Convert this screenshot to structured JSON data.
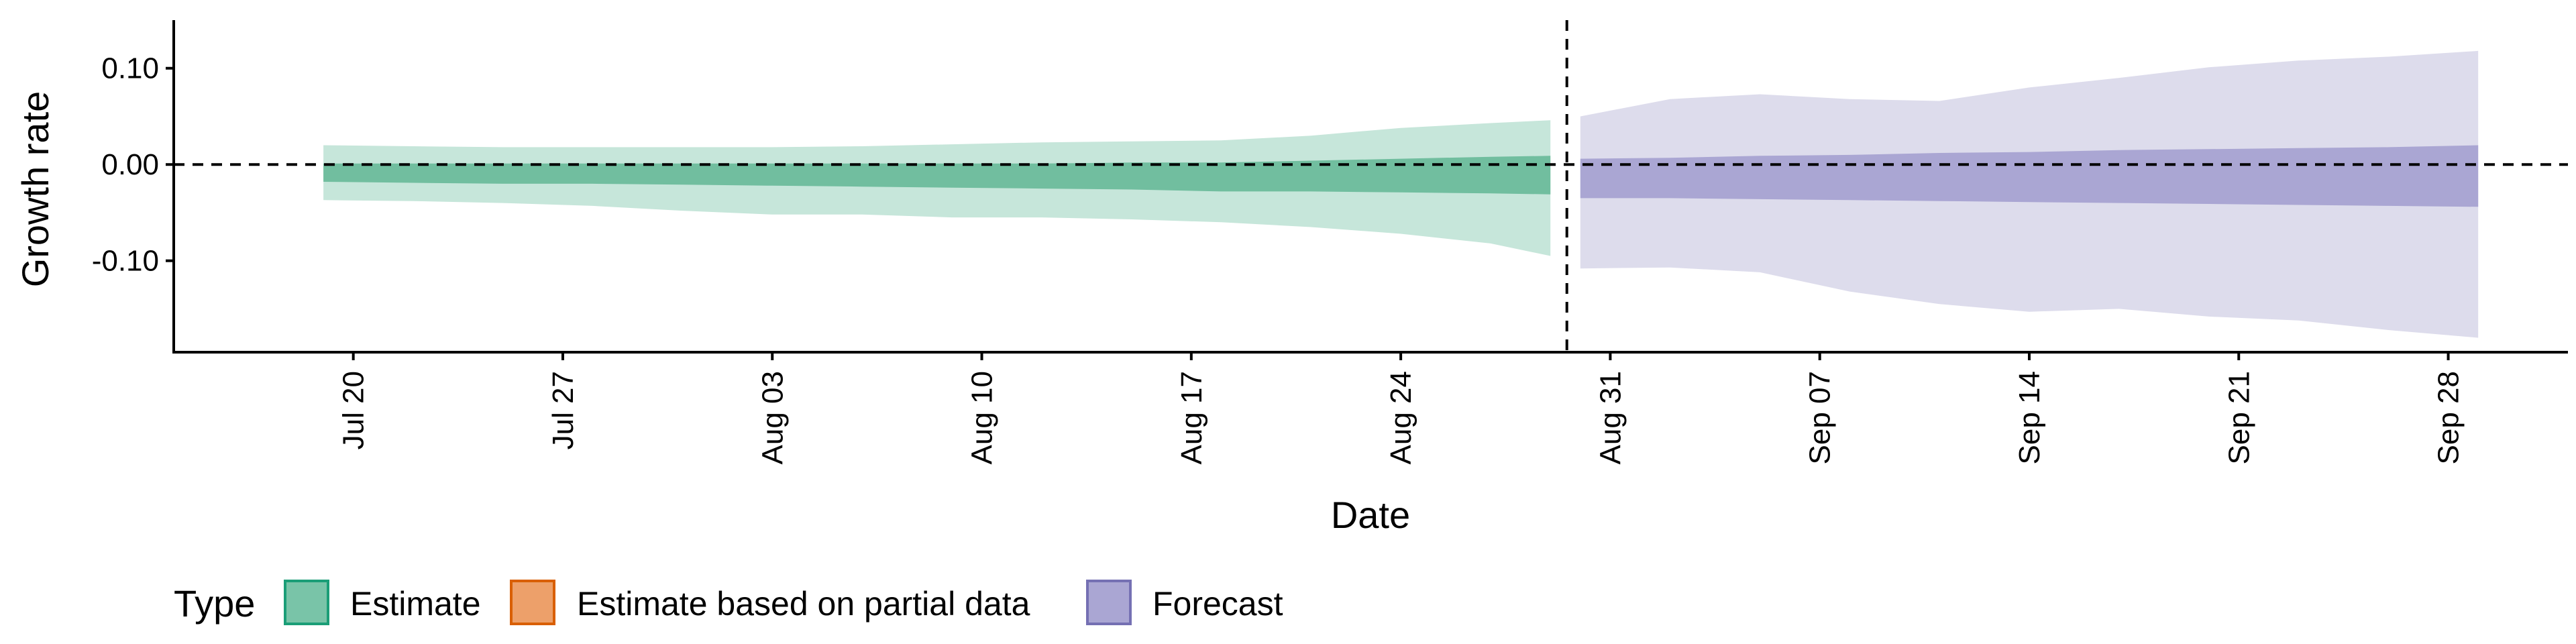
{
  "chart_data": {
    "type": "area",
    "title": "",
    "xlabel": "Date",
    "ylabel": "Growth rate",
    "x_ticks": [
      "Jul 20",
      "Jul 27",
      "Aug 03",
      "Aug 10",
      "Aug 17",
      "Aug 24",
      "Aug 31",
      "Sep 07",
      "Sep 14",
      "Sep 21",
      "Sep 28"
    ],
    "y_ticks": [
      "0.10",
      "0.00",
      "-0.10"
    ],
    "ylim": [
      -0.195,
      0.15
    ],
    "xlim": [
      "2020-07-14",
      "2020-10-02"
    ],
    "reference_lines": {
      "horizontal_y": 0.0,
      "vertical_date": "2020-08-30"
    },
    "legend": {
      "title": "Type",
      "position": "bottom",
      "items": [
        {
          "label": "Estimate",
          "fill": "#79c4a8",
          "border": "#1b9e77"
        },
        {
          "label": "Estimate based on partial data",
          "fill": "#eda06a",
          "border": "#d95f02"
        },
        {
          "label": "Forecast",
          "fill": "#aaa6d3",
          "border": "#7570b3"
        }
      ]
    },
    "series": [
      {
        "name": "Estimate",
        "color_outer": "#c6e6da",
        "color_inner": "#71be9f",
        "dates": [
          "2020-07-19",
          "2020-07-22",
          "2020-07-25",
          "2020-07-28",
          "2020-07-31",
          "2020-08-03",
          "2020-08-06",
          "2020-08-09",
          "2020-08-12",
          "2020-08-15",
          "2020-08-18",
          "2020-08-21",
          "2020-08-24",
          "2020-08-27",
          "2020-08-29"
        ],
        "lower_90": [
          -0.037,
          -0.038,
          -0.04,
          -0.043,
          -0.048,
          -0.052,
          -0.052,
          -0.055,
          -0.055,
          -0.057,
          -0.06,
          -0.065,
          -0.072,
          -0.082,
          -0.095
        ],
        "upper_90": [
          0.02,
          0.019,
          0.018,
          0.018,
          0.018,
          0.018,
          0.019,
          0.021,
          0.023,
          0.024,
          0.025,
          0.03,
          0.038,
          0.043,
          0.046
        ],
        "lower_50": [
          -0.018,
          -0.019,
          -0.02,
          -0.02,
          -0.021,
          -0.022,
          -0.023,
          -0.024,
          -0.025,
          -0.026,
          -0.028,
          -0.028,
          -0.029,
          -0.03,
          -0.031
        ],
        "upper_50": [
          0.001,
          0.001,
          0.001,
          0.001,
          0.001,
          0.001,
          0.001,
          0.001,
          0.001,
          0.002,
          0.002,
          0.004,
          0.006,
          0.008,
          0.009
        ]
      },
      {
        "name": "Forecast",
        "color_outer": "#dddcec",
        "color_inner": "#aaa6d3",
        "dates": [
          "2020-08-30",
          "2020-09-02",
          "2020-09-05",
          "2020-09-08",
          "2020-09-11",
          "2020-09-14",
          "2020-09-17",
          "2020-09-20",
          "2020-09-23",
          "2020-09-26",
          "2020-09-29"
        ],
        "lower_90": [
          -0.108,
          -0.107,
          -0.112,
          -0.132,
          -0.145,
          -0.153,
          -0.15,
          -0.158,
          -0.162,
          -0.172,
          -0.18
        ],
        "upper_90": [
          0.05,
          0.068,
          0.073,
          0.068,
          0.066,
          0.08,
          0.09,
          0.101,
          0.108,
          0.112,
          0.118
        ],
        "lower_50": [
          -0.035,
          -0.035,
          -0.036,
          -0.037,
          -0.038,
          -0.039,
          -0.04,
          -0.041,
          -0.042,
          -0.043,
          -0.044
        ],
        "upper_50": [
          0.006,
          0.007,
          0.009,
          0.01,
          0.012,
          0.013,
          0.015,
          0.016,
          0.017,
          0.018,
          0.02
        ]
      }
    ]
  }
}
